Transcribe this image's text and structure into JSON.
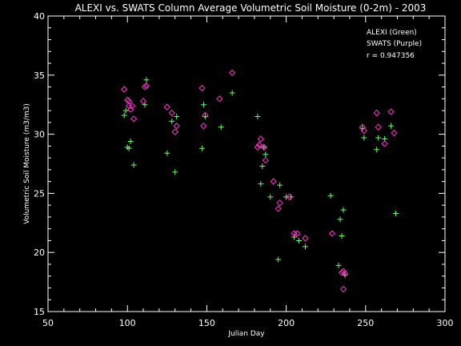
{
  "chart_data": {
    "type": "scatter",
    "title": "ALEXI vs. SWATS Column Average Volumetric Soil Moisture (0-2m) - 2003",
    "xlabel": "Julian Day",
    "ylabel": "Volumetric Soil Moisture (m3/m3)",
    "xlim": [
      50,
      300
    ],
    "ylim": [
      15,
      40
    ],
    "xticks": [
      50,
      100,
      150,
      200,
      250,
      300
    ],
    "yticks": [
      15,
      20,
      25,
      30,
      35,
      40
    ],
    "grid": false,
    "legend_position": "top-right",
    "annotations": [
      "ALEXI (Green)",
      "SWATS (Purple)",
      "r = 0.947356"
    ],
    "colors": {
      "ALEXI": "#66ff66",
      "SWATS": "#ff33cc",
      "background": "#000000",
      "axes": "#ffffff"
    },
    "series": [
      {
        "marker": "plus",
        "color": "#66ff66",
        "points": [
          [
            98,
            31.6
          ],
          [
            99,
            32.0
          ],
          [
            100,
            28.9
          ],
          [
            101,
            28.8
          ],
          [
            102,
            29.4
          ],
          [
            104,
            27.4
          ],
          [
            111,
            32.5
          ],
          [
            112,
            34.6
          ],
          [
            125,
            28.4
          ],
          [
            128,
            31.1
          ],
          [
            130,
            26.8
          ],
          [
            131,
            31.5
          ],
          [
            147,
            28.8
          ],
          [
            148,
            32.5
          ],
          [
            149,
            31.5
          ],
          [
            159,
            30.6
          ],
          [
            166,
            33.5
          ],
          [
            182,
            31.5
          ],
          [
            184,
            25.8
          ],
          [
            185,
            27.3
          ],
          [
            186,
            28.9
          ],
          [
            187,
            28.3
          ],
          [
            190,
            24.7
          ],
          [
            195,
            19.4
          ],
          [
            196,
            25.7
          ],
          [
            200,
            24.7
          ],
          [
            203,
            24.7
          ],
          [
            205,
            21.3
          ],
          [
            208,
            21.0
          ],
          [
            212,
            20.5
          ],
          [
            228,
            24.8
          ],
          [
            233,
            18.9
          ],
          [
            234,
            22.8
          ],
          [
            235,
            21.4
          ],
          [
            236,
            23.6
          ],
          [
            237,
            18.1
          ],
          [
            248,
            30.5
          ],
          [
            249,
            29.7
          ],
          [
            257,
            28.7
          ],
          [
            258,
            29.7
          ],
          [
            262,
            29.6
          ],
          [
            266,
            30.7
          ],
          [
            269,
            23.3
          ]
        ]
      },
      {
        "marker": "diamond",
        "color": "#ff33cc",
        "points": [
          [
            98,
            33.8
          ],
          [
            100,
            32.9
          ],
          [
            101,
            32.4
          ],
          [
            101,
            32.8
          ],
          [
            102,
            32.1
          ],
          [
            103,
            32.4
          ],
          [
            104,
            31.3
          ],
          [
            110,
            32.8
          ],
          [
            111,
            34.0
          ],
          [
            112,
            34.1
          ],
          [
            125,
            32.3
          ],
          [
            128,
            31.8
          ],
          [
            130,
            30.2
          ],
          [
            131,
            30.7
          ],
          [
            147,
            33.9
          ],
          [
            148,
            30.7
          ],
          [
            149,
            31.6
          ],
          [
            158,
            33.0
          ],
          [
            166,
            35.2
          ],
          [
            182,
            28.9
          ],
          [
            183,
            29.1
          ],
          [
            184,
            29.6
          ],
          [
            186,
            28.9
          ],
          [
            187,
            27.8
          ],
          [
            192,
            26.0
          ],
          [
            195,
            23.7
          ],
          [
            196,
            24.2
          ],
          [
            202,
            24.7
          ],
          [
            205,
            21.6
          ],
          [
            207,
            21.6
          ],
          [
            212,
            21.2
          ],
          [
            229,
            21.6
          ],
          [
            235,
            18.3
          ],
          [
            236,
            16.9
          ],
          [
            236,
            18.4
          ],
          [
            237,
            18.2
          ],
          [
            248,
            30.6
          ],
          [
            249,
            30.3
          ],
          [
            257,
            31.8
          ],
          [
            258,
            30.6
          ],
          [
            262,
            29.2
          ],
          [
            266,
            31.9
          ],
          [
            268,
            30.1
          ]
        ]
      }
    ]
  }
}
